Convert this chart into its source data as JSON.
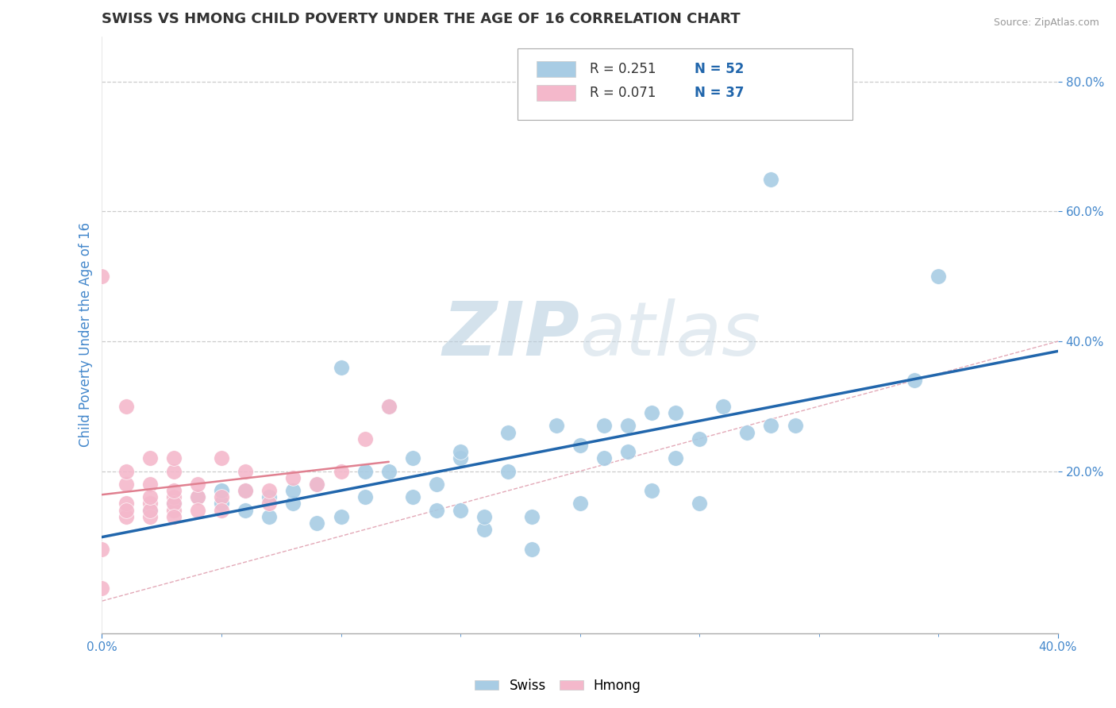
{
  "title": "SWISS VS HMONG CHILD POVERTY UNDER THE AGE OF 16 CORRELATION CHART",
  "source": "Source: ZipAtlas.com",
  "ylabel": "Child Poverty Under the Age of 16",
  "xlim": [
    0.0,
    0.4
  ],
  "ylim": [
    -0.05,
    0.87
  ],
  "ytick_values": [
    0.2,
    0.4,
    0.6,
    0.8
  ],
  "swiss_R": 0.251,
  "swiss_N": 52,
  "hmong_R": 0.071,
  "hmong_N": 37,
  "swiss_color": "#a8cce4",
  "hmong_color": "#f4b8cb",
  "swiss_line_color": "#2166ac",
  "hmong_line_color": "#e08090",
  "diag_color": "#e0a0b0",
  "grid_color": "#cccccc",
  "axis_label_color": "#4488cc",
  "tick_color": "#4488cc",
  "watermark_color": "#d0dde8",
  "swiss_x": [
    0.02,
    0.03,
    0.04,
    0.05,
    0.05,
    0.06,
    0.06,
    0.07,
    0.07,
    0.08,
    0.08,
    0.09,
    0.09,
    0.1,
    0.1,
    0.11,
    0.11,
    0.12,
    0.12,
    0.13,
    0.13,
    0.14,
    0.14,
    0.15,
    0.15,
    0.15,
    0.16,
    0.16,
    0.17,
    0.17,
    0.18,
    0.18,
    0.19,
    0.2,
    0.2,
    0.21,
    0.21,
    0.22,
    0.22,
    0.23,
    0.23,
    0.24,
    0.24,
    0.25,
    0.25,
    0.26,
    0.27,
    0.28,
    0.28,
    0.29,
    0.34,
    0.35
  ],
  "swiss_y": [
    0.14,
    0.15,
    0.16,
    0.15,
    0.17,
    0.14,
    0.17,
    0.13,
    0.16,
    0.15,
    0.17,
    0.12,
    0.18,
    0.13,
    0.36,
    0.16,
    0.2,
    0.2,
    0.3,
    0.16,
    0.22,
    0.14,
    0.18,
    0.22,
    0.14,
    0.23,
    0.11,
    0.13,
    0.2,
    0.26,
    0.08,
    0.13,
    0.27,
    0.24,
    0.15,
    0.27,
    0.22,
    0.23,
    0.27,
    0.29,
    0.17,
    0.22,
    0.29,
    0.25,
    0.15,
    0.3,
    0.26,
    0.65,
    0.27,
    0.27,
    0.34,
    0.5
  ],
  "hmong_x": [
    0.0,
    0.0,
    0.0,
    0.01,
    0.01,
    0.01,
    0.01,
    0.01,
    0.01,
    0.02,
    0.02,
    0.02,
    0.02,
    0.02,
    0.02,
    0.03,
    0.03,
    0.03,
    0.03,
    0.03,
    0.03,
    0.03,
    0.04,
    0.04,
    0.04,
    0.05,
    0.05,
    0.05,
    0.06,
    0.06,
    0.07,
    0.07,
    0.08,
    0.09,
    0.1,
    0.11,
    0.12
  ],
  "hmong_y": [
    0.02,
    0.08,
    0.5,
    0.13,
    0.15,
    0.18,
    0.2,
    0.14,
    0.3,
    0.15,
    0.13,
    0.18,
    0.14,
    0.16,
    0.22,
    0.14,
    0.16,
    0.15,
    0.13,
    0.17,
    0.2,
    0.22,
    0.16,
    0.14,
    0.18,
    0.16,
    0.14,
    0.22,
    0.17,
    0.2,
    0.15,
    0.17,
    0.19,
    0.18,
    0.2,
    0.25,
    0.3
  ]
}
